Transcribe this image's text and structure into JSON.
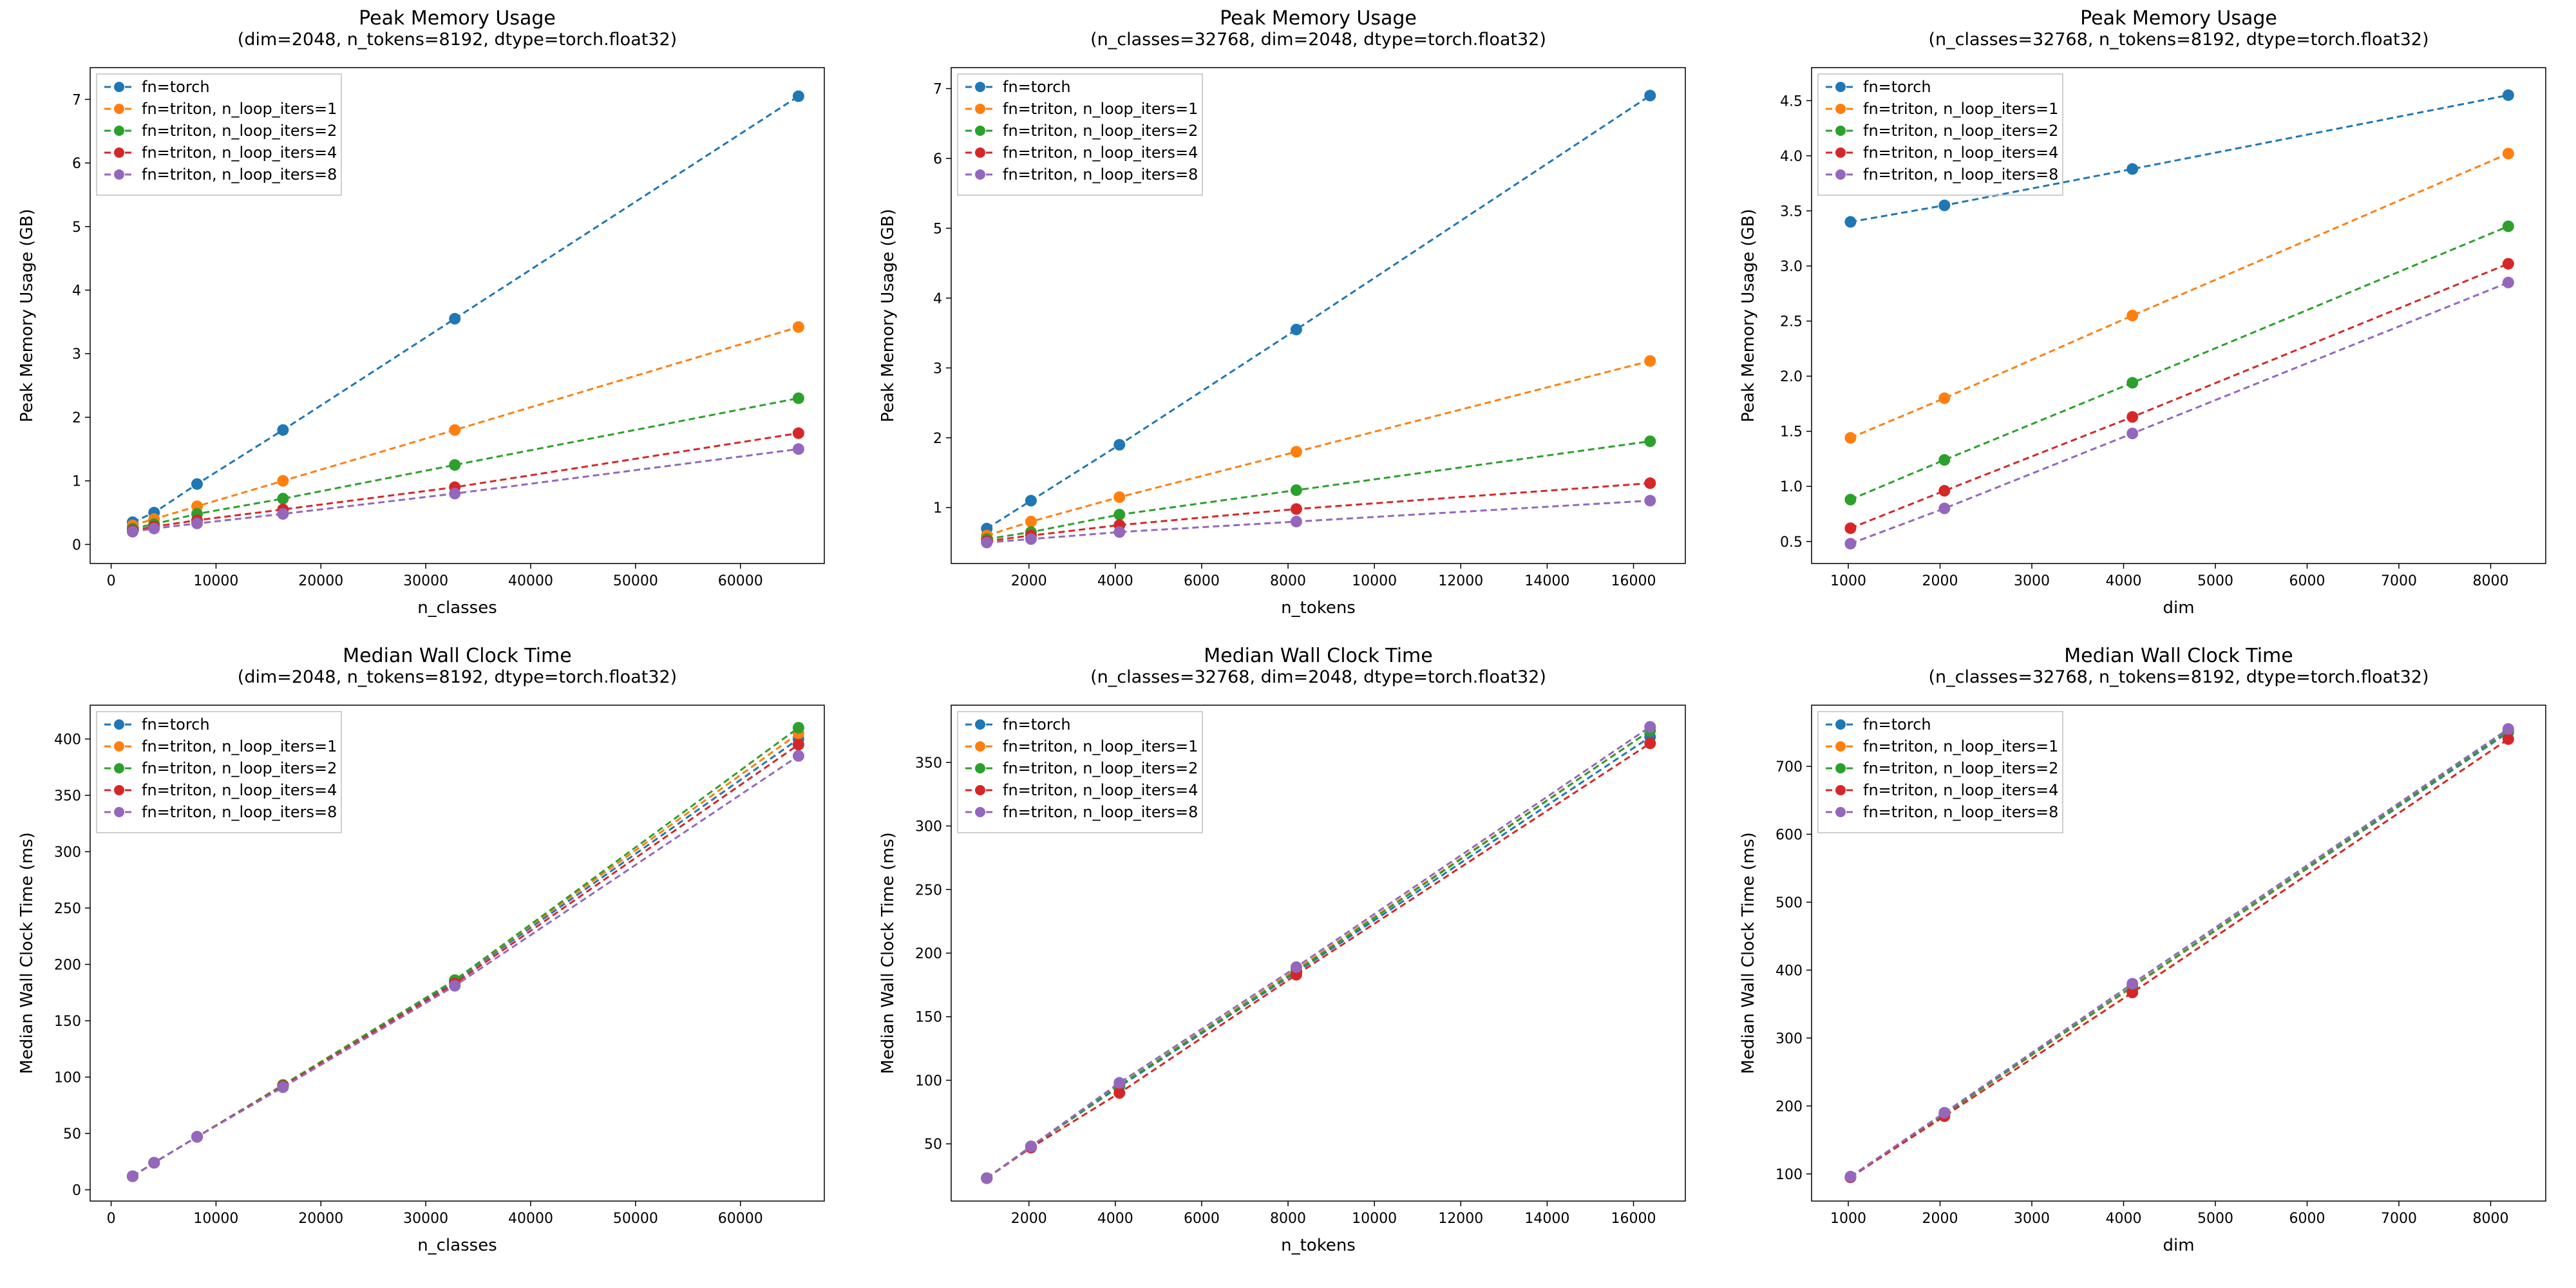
{
  "colors": {
    "torch": "#1f77b4",
    "triton1": "#ff7f0e",
    "triton2": "#2ca02c",
    "triton4": "#d62728",
    "triton8": "#9467bd",
    "bg": "#ffffff",
    "axis": "#000000",
    "legend_border": "#bfbfbf"
  },
  "marker_radius": 9,
  "line_width": 3,
  "legend_labels": [
    "fn=torch",
    "fn=triton, n_loop_iters=1",
    "fn=triton, n_loop_iters=2",
    "fn=triton, n_loop_iters=4",
    "fn=triton, n_loop_iters=8"
  ],
  "panels": [
    {
      "id": "p00",
      "title_main": "Peak Memory Usage",
      "title_sub": "(dim=2048, n_tokens=8192, dtype=torch.float32)",
      "xlabel": "n_classes",
      "ylabel": "Peak Memory Usage (GB)",
      "xlim": [
        -2000,
        68000
      ],
      "ylim": [
        -0.3,
        7.5
      ],
      "xticks": [
        0,
        10000,
        20000,
        30000,
        40000,
        50000,
        60000
      ],
      "yticks": [
        0,
        1,
        2,
        3,
        4,
        5,
        6,
        7
      ],
      "yticklabels": [
        "0",
        "1",
        "2",
        "3",
        "4",
        "5",
        "6",
        "7"
      ],
      "x": [
        2048,
        4096,
        8192,
        16384,
        32768,
        65536
      ],
      "series": {
        "torch": [
          0.35,
          0.5,
          0.95,
          1.8,
          3.55,
          7.05
        ],
        "triton1": [
          0.3,
          0.4,
          0.6,
          1.0,
          1.8,
          3.42
        ],
        "triton2": [
          0.25,
          0.32,
          0.48,
          0.72,
          1.25,
          2.3
        ],
        "triton4": [
          0.22,
          0.28,
          0.38,
          0.55,
          0.9,
          1.75
        ],
        "triton8": [
          0.2,
          0.25,
          0.33,
          0.48,
          0.8,
          1.5
        ]
      }
    },
    {
      "id": "p01",
      "title_main": "Peak Memory Usage",
      "title_sub": "(n_classes=32768, dim=2048, dtype=torch.float32)",
      "xlabel": "n_tokens",
      "ylabel": "Peak Memory Usage (GB)",
      "xlim": [
        200,
        17200
      ],
      "ylim": [
        0.2,
        7.3
      ],
      "xticks": [
        2000,
        4000,
        6000,
        8000,
        10000,
        12000,
        14000,
        16000
      ],
      "yticks": [
        1,
        2,
        3,
        4,
        5,
        6,
        7
      ],
      "yticklabels": [
        "1",
        "2",
        "3",
        "4",
        "5",
        "6",
        "7"
      ],
      "x": [
        1024,
        2048,
        4096,
        8192,
        16384
      ],
      "series": {
        "torch": [
          0.7,
          1.1,
          1.9,
          3.55,
          6.9
        ],
        "triton1": [
          0.6,
          0.8,
          1.15,
          1.8,
          3.1
        ],
        "triton2": [
          0.55,
          0.65,
          0.9,
          1.25,
          1.95
        ],
        "triton4": [
          0.52,
          0.6,
          0.75,
          0.98,
          1.35
        ],
        "triton8": [
          0.5,
          0.55,
          0.65,
          0.8,
          1.1
        ]
      }
    },
    {
      "id": "p02",
      "title_main": "Peak Memory Usage",
      "title_sub": "(n_classes=32768, n_tokens=8192, dtype=torch.float32)",
      "xlabel": "dim",
      "ylabel": "Peak Memory Usage (GB)",
      "xlim": [
        600,
        8600
      ],
      "ylim": [
        0.3,
        4.8
      ],
      "xticks": [
        1000,
        2000,
        3000,
        4000,
        5000,
        6000,
        7000,
        8000
      ],
      "yticks": [
        0.5,
        1.0,
        1.5,
        2.0,
        2.5,
        3.0,
        3.5,
        4.0,
        4.5
      ],
      "yticklabels": [
        "0.5",
        "1.0",
        "1.5",
        "2.0",
        "2.5",
        "3.0",
        "3.5",
        "4.0",
        "4.5"
      ],
      "x": [
        1024,
        2048,
        4096,
        8192
      ],
      "series": {
        "torch": [
          3.4,
          3.55,
          3.88,
          4.55
        ],
        "triton1": [
          1.44,
          1.8,
          2.55,
          4.02
        ],
        "triton2": [
          0.88,
          1.24,
          1.94,
          3.36
        ],
        "triton4": [
          0.62,
          0.96,
          1.63,
          3.02
        ],
        "triton8": [
          0.48,
          0.8,
          1.48,
          2.85
        ]
      }
    },
    {
      "id": "p10",
      "title_main": "Median Wall Clock Time",
      "title_sub": "(dim=2048, n_tokens=8192, dtype=torch.float32)",
      "xlabel": "n_classes",
      "ylabel": "Median Wall Clock Time (ms)",
      "xlim": [
        -2000,
        68000
      ],
      "ylim": [
        -10,
        430
      ],
      "xticks": [
        0,
        10000,
        20000,
        30000,
        40000,
        50000,
        60000
      ],
      "yticks": [
        0,
        50,
        100,
        150,
        200,
        250,
        300,
        350,
        400
      ],
      "yticklabels": [
        "0",
        "50",
        "100",
        "150",
        "200",
        "250",
        "300",
        "350",
        "400"
      ],
      "x": [
        2048,
        4096,
        8192,
        16384,
        32768,
        65536
      ],
      "series": {
        "torch": [
          12,
          24,
          47,
          92,
          185,
          400
        ],
        "triton1": [
          12,
          24,
          47,
          93,
          186,
          405
        ],
        "triton2": [
          12,
          24,
          47,
          93,
          186,
          410
        ],
        "triton4": [
          12,
          24,
          47,
          92,
          183,
          395
        ],
        "triton8": [
          12,
          24,
          47,
          91,
          181,
          385
        ]
      }
    },
    {
      "id": "p11",
      "title_main": "Median Wall Clock Time",
      "title_sub": "(n_classes=32768, dim=2048, dtype=torch.float32)",
      "xlabel": "n_tokens",
      "ylabel": "Median Wall Clock Time (ms)",
      "xlim": [
        200,
        17200
      ],
      "ylim": [
        5,
        395
      ],
      "xticks": [
        2000,
        4000,
        6000,
        8000,
        10000,
        12000,
        14000,
        16000
      ],
      "yticks": [
        50,
        100,
        150,
        200,
        250,
        300,
        350
      ],
      "yticklabels": [
        "50",
        "100",
        "150",
        "200",
        "250",
        "300",
        "350"
      ],
      "x": [
        1024,
        2048,
        4096,
        8192,
        16384
      ],
      "series": {
        "torch": [
          23,
          48,
          95,
          185,
          370
        ],
        "triton1": [
          23,
          48,
          96,
          187,
          375
        ],
        "triton2": [
          23,
          48,
          96,
          186,
          375
        ],
        "triton4": [
          23,
          47,
          90,
          183,
          365
        ],
        "triton8": [
          23,
          48,
          98,
          189,
          378
        ]
      }
    },
    {
      "id": "p12",
      "title_main": "Median Wall Clock Time",
      "title_sub": "(n_classes=32768, n_tokens=8192, dtype=torch.float32)",
      "xlabel": "dim",
      "ylabel": "Median Wall Clock Time (ms)",
      "xlim": [
        600,
        8600
      ],
      "ylim": [
        60,
        790
      ],
      "xticks": [
        1000,
        2000,
        3000,
        4000,
        5000,
        6000,
        7000,
        8000
      ],
      "yticks": [
        100,
        200,
        300,
        400,
        500,
        600,
        700
      ],
      "yticklabels": [
        "100",
        "200",
        "300",
        "400",
        "500",
        "600",
        "700"
      ],
      "x": [
        1024,
        2048,
        4096,
        8192
      ],
      "series": {
        "torch": [
          95,
          188,
          375,
          750
        ],
        "triton1": [
          95,
          188,
          375,
          752
        ],
        "triton2": [
          95,
          188,
          376,
          752
        ],
        "triton4": [
          95,
          185,
          367,
          740
        ],
        "triton8": [
          96,
          190,
          380,
          755
        ]
      }
    }
  ]
}
